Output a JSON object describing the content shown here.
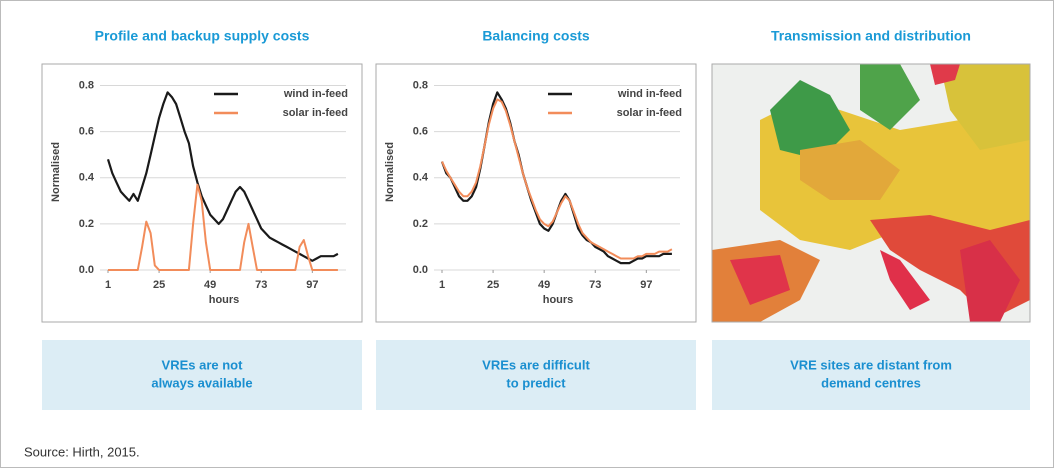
{
  "panels": [
    {
      "heading": "Profile and backup supply costs",
      "caption_lines": [
        "VREs are not",
        "always available"
      ]
    },
    {
      "heading": "Balancing costs",
      "caption_lines": [
        "VREs are difficult",
        "to predict"
      ]
    },
    {
      "heading": "Transmission and distribution",
      "caption_lines": [
        "VRE sites are distant from",
        "demand centres"
      ]
    }
  ],
  "source": "Source: Hirth, 2015.",
  "chart_data": [
    {
      "type": "line",
      "xlabel": "hours",
      "ylabel": "Normalised",
      "x": [
        1,
        3,
        5,
        7,
        9,
        11,
        13,
        15,
        17,
        19,
        21,
        23,
        25,
        27,
        29,
        31,
        33,
        35,
        37,
        39,
        41,
        43,
        45,
        47,
        49,
        51,
        53,
        55,
        57,
        59,
        61,
        63,
        65,
        67,
        69,
        71,
        73,
        75,
        77,
        79,
        81,
        83,
        85,
        87,
        89,
        91,
        93,
        95,
        97,
        99,
        101,
        103,
        105,
        107,
        109
      ],
      "series": [
        {
          "name": "wind in-feed",
          "color": "#1a1a1a",
          "values": [
            0.48,
            0.42,
            0.38,
            0.34,
            0.32,
            0.3,
            0.33,
            0.3,
            0.36,
            0.42,
            0.5,
            0.58,
            0.66,
            0.72,
            0.77,
            0.75,
            0.72,
            0.66,
            0.6,
            0.55,
            0.45,
            0.38,
            0.32,
            0.28,
            0.24,
            0.22,
            0.2,
            0.22,
            0.26,
            0.3,
            0.34,
            0.36,
            0.34,
            0.3,
            0.26,
            0.22,
            0.18,
            0.16,
            0.14,
            0.13,
            0.12,
            0.11,
            0.1,
            0.09,
            0.08,
            0.07,
            0.06,
            0.05,
            0.04,
            0.05,
            0.06,
            0.06,
            0.06,
            0.06,
            0.07
          ]
        },
        {
          "name": "solar in-feed",
          "color": "#f28c5a",
          "values": [
            0,
            0,
            0,
            0,
            0,
            0,
            0,
            0,
            0.1,
            0.21,
            0.16,
            0.02,
            0,
            0,
            0,
            0,
            0,
            0,
            0,
            0,
            0.2,
            0.37,
            0.3,
            0.12,
            0,
            0,
            0,
            0,
            0,
            0,
            0,
            0,
            0.12,
            0.2,
            0.1,
            0,
            0,
            0,
            0,
            0,
            0,
            0,
            0,
            0,
            0,
            0.1,
            0.13,
            0.06,
            0,
            0,
            0,
            0,
            0,
            0,
            0
          ]
        }
      ],
      "xlim": [
        1,
        110
      ],
      "xticks": [
        1,
        25,
        49,
        73,
        97
      ],
      "ylim": [
        0,
        0.85
      ],
      "yticks": [
        {
          "value": 0,
          "label": "0.0"
        },
        0.2,
        0.4,
        0.6,
        0.8
      ],
      "grid": true,
      "legend": "upper right"
    },
    {
      "type": "line",
      "xlabel": "hours",
      "ylabel": "Normalised",
      "x": [
        1,
        3,
        5,
        7,
        9,
        11,
        13,
        15,
        17,
        19,
        21,
        23,
        25,
        27,
        29,
        31,
        33,
        35,
        37,
        39,
        41,
        43,
        45,
        47,
        49,
        51,
        53,
        55,
        57,
        59,
        61,
        63,
        65,
        67,
        69,
        71,
        73,
        75,
        77,
        79,
        81,
        83,
        85,
        87,
        89,
        91,
        93,
        95,
        97,
        99,
        101,
        103,
        105,
        107,
        109
      ],
      "series": [
        {
          "name": "wind in-feed",
          "color": "#1a1a1a",
          "values": [
            0.47,
            0.42,
            0.4,
            0.36,
            0.32,
            0.3,
            0.3,
            0.32,
            0.36,
            0.44,
            0.54,
            0.64,
            0.72,
            0.77,
            0.74,
            0.7,
            0.64,
            0.56,
            0.5,
            0.42,
            0.36,
            0.3,
            0.25,
            0.2,
            0.18,
            0.17,
            0.2,
            0.25,
            0.3,
            0.33,
            0.3,
            0.24,
            0.18,
            0.15,
            0.13,
            0.12,
            0.1,
            0.09,
            0.08,
            0.06,
            0.05,
            0.04,
            0.03,
            0.03,
            0.03,
            0.04,
            0.05,
            0.05,
            0.06,
            0.06,
            0.06,
            0.06,
            0.07,
            0.07,
            0.07
          ]
        },
        {
          "name": "solar in-feed",
          "color": "#f28c5a",
          "values": [
            0.47,
            0.43,
            0.4,
            0.37,
            0.34,
            0.32,
            0.32,
            0.34,
            0.38,
            0.45,
            0.54,
            0.63,
            0.7,
            0.74,
            0.73,
            0.69,
            0.63,
            0.56,
            0.49,
            0.42,
            0.36,
            0.31,
            0.26,
            0.22,
            0.2,
            0.19,
            0.21,
            0.25,
            0.29,
            0.32,
            0.3,
            0.25,
            0.2,
            0.16,
            0.14,
            0.12,
            0.11,
            0.1,
            0.09,
            0.08,
            0.07,
            0.06,
            0.05,
            0.05,
            0.05,
            0.05,
            0.06,
            0.06,
            0.07,
            0.07,
            0.07,
            0.08,
            0.08,
            0.08,
            0.09
          ]
        }
      ],
      "xlim": [
        1,
        110
      ],
      "xticks": [
        1,
        25,
        49,
        73,
        97
      ],
      "ylim": [
        0,
        0.85
      ],
      "yticks": [
        {
          "value": 0,
          "label": "0.0"
        },
        0.2,
        0.4,
        0.6,
        0.8
      ],
      "grid": true,
      "legend": "upper right"
    }
  ]
}
